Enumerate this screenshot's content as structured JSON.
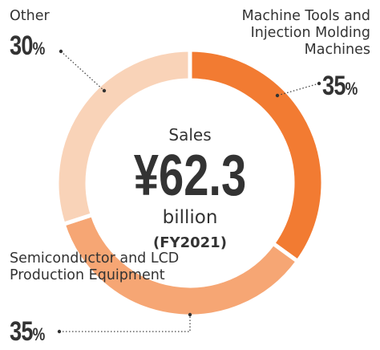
{
  "chart_data": {
    "type": "pie",
    "donut": true,
    "categories": [
      "Machine Tools and\nInjection Molding\nMachines",
      "Semiconductor and LCD\nProduction Equipment",
      "Other"
    ],
    "values": [
      35,
      35,
      30
    ],
    "value_labels": [
      "35%",
      "35%",
      "30%"
    ],
    "colors": [
      "#f27b32",
      "#f6a674",
      "#f9d3b8"
    ],
    "center_text": {
      "label": "Sales",
      "value": "¥62.3",
      "unit": "billion",
      "period": "(FY2021)"
    }
  }
}
